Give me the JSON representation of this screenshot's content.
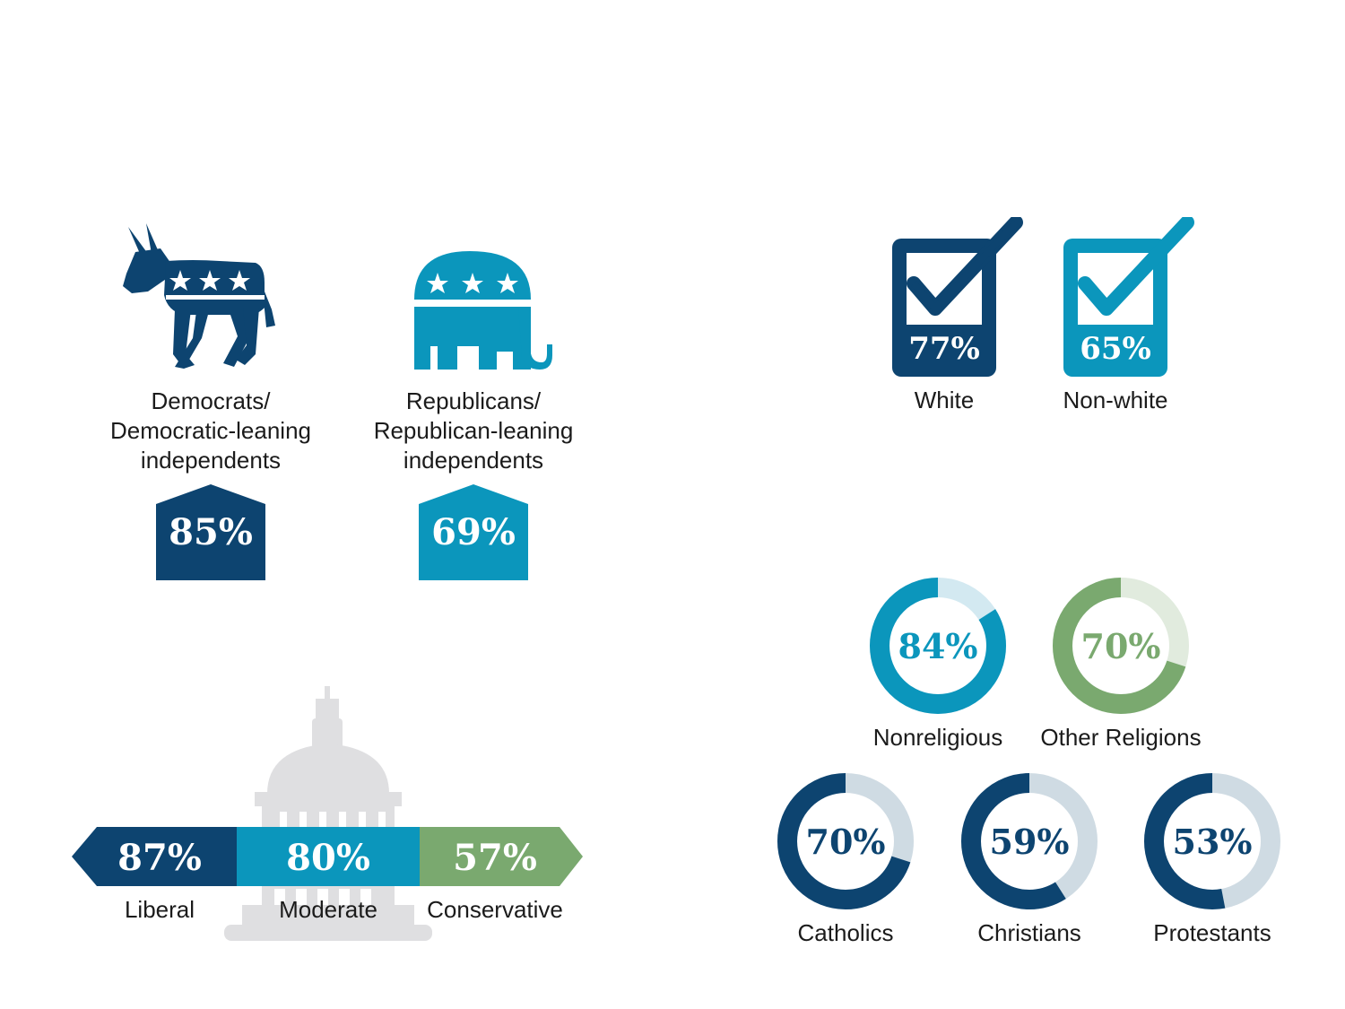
{
  "colors": {
    "navy": "#0d4470",
    "teal": "#0b96bc",
    "green": "#7aa96f",
    "teal_light": "#d3e9f1",
    "green_light": "#e1ebde",
    "navy_light": "#cfdbe3",
    "capitol_gray": "#dfdfe1"
  },
  "party": {
    "democrats": {
      "icon": "donkey-icon",
      "label_lines": [
        "Democrats/",
        "Democratic-leaning",
        "independents"
      ],
      "value_label": "85%",
      "value": 85
    },
    "republicans": {
      "icon": "elephant-icon",
      "label_lines": [
        "Republicans/",
        "Republican-leaning",
        "independents"
      ],
      "value_label": "69%",
      "value": 69
    }
  },
  "race": [
    {
      "label": "White",
      "value_label": "77%",
      "value": 77,
      "icon": "checkbox-icon"
    },
    {
      "label": "Non-white",
      "value_label": "65%",
      "value": 65,
      "icon": "checkbox-icon"
    }
  ],
  "ideology": {
    "background_icon": "capitol-icon",
    "items": [
      {
        "label": "Liberal",
        "value_label": "87%",
        "value": 87
      },
      {
        "label": "Moderate",
        "value_label": "80%",
        "value": 80
      },
      {
        "label": "Conservative",
        "value_label": "57%",
        "value": 57
      }
    ]
  },
  "religion_top": [
    {
      "label": "Nonreligious",
      "value_label": "84%",
      "value": 84
    },
    {
      "label": "Other Religions",
      "value_label": "70%",
      "value": 70
    }
  ],
  "religion_bottom": [
    {
      "label": "Catholics",
      "value_label": "70%",
      "value": 70
    },
    {
      "label": "Christians",
      "value_label": "59%",
      "value": 59
    },
    {
      "label": "Protestants",
      "value_label": "53%",
      "value": 53
    }
  ]
}
